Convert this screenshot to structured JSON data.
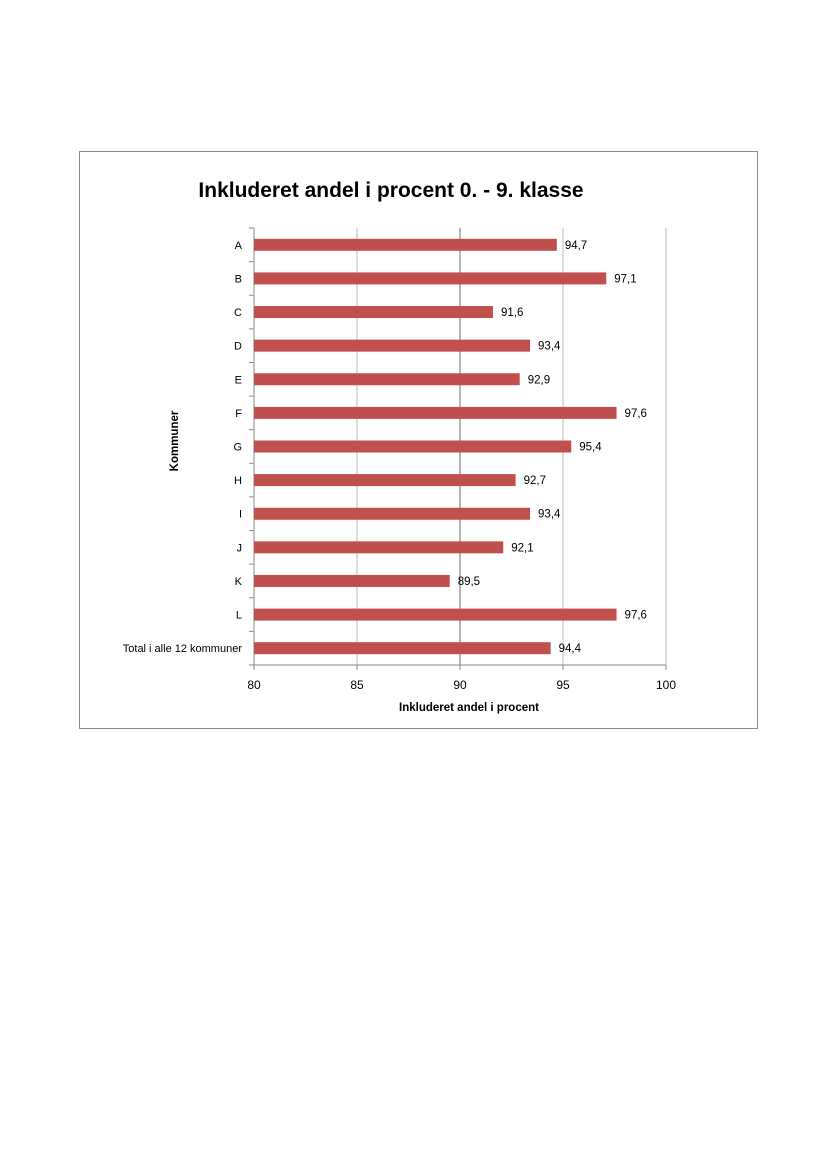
{
  "chart_data": {
    "type": "bar",
    "orientation": "horizontal",
    "title": "Inkluderet andel i procent 0. - 9. klasse",
    "xlabel": "Inkluderet andel i procent",
    "ylabel": "Kommuner",
    "categories": [
      "A",
      "B",
      "C",
      "D",
      "E",
      "F",
      "G",
      "H",
      "I",
      "J",
      "K",
      "L",
      "Total i alle 12 kommuner"
    ],
    "values": [
      94.7,
      97.1,
      91.6,
      93.4,
      92.9,
      97.6,
      95.4,
      92.7,
      93.4,
      92.1,
      89.5,
      97.6,
      94.4
    ],
    "data_labels": [
      "94,7",
      "97,1",
      "91,6",
      "93,4",
      "92,9",
      "97,6",
      "95,4",
      "92,7",
      "93,4",
      "92,1",
      "89,5",
      "97,6",
      "94,4"
    ],
    "xlim": [
      80,
      100
    ],
    "ticks": [
      80,
      85,
      90,
      95,
      100
    ],
    "tick_labels": [
      "80",
      "85",
      "90",
      "95",
      "100"
    ],
    "grid": "vertical",
    "legend": "none",
    "bar_color": "#c0504d",
    "gridline_color": "#b8b8b8",
    "frame_color": "#8a8a8a"
  }
}
